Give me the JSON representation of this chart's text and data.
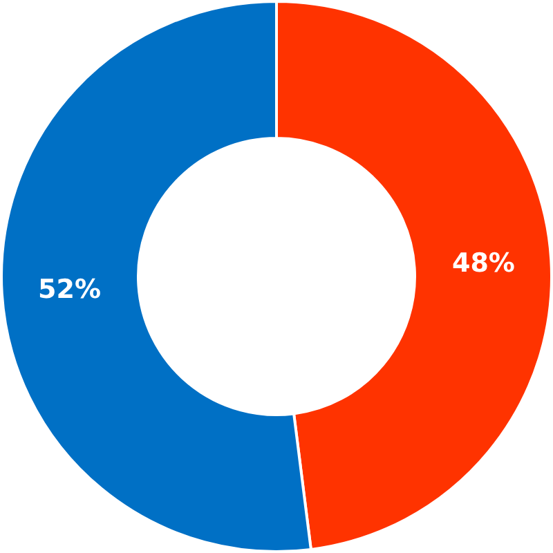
{
  "chart_data": {
    "type": "donut",
    "categories": [
      null,
      null
    ],
    "values": [
      48,
      52
    ],
    "colors": [
      "#ff3300",
      "#0070c5"
    ],
    "value_labels": [
      "48%",
      "52%"
    ]
  }
}
